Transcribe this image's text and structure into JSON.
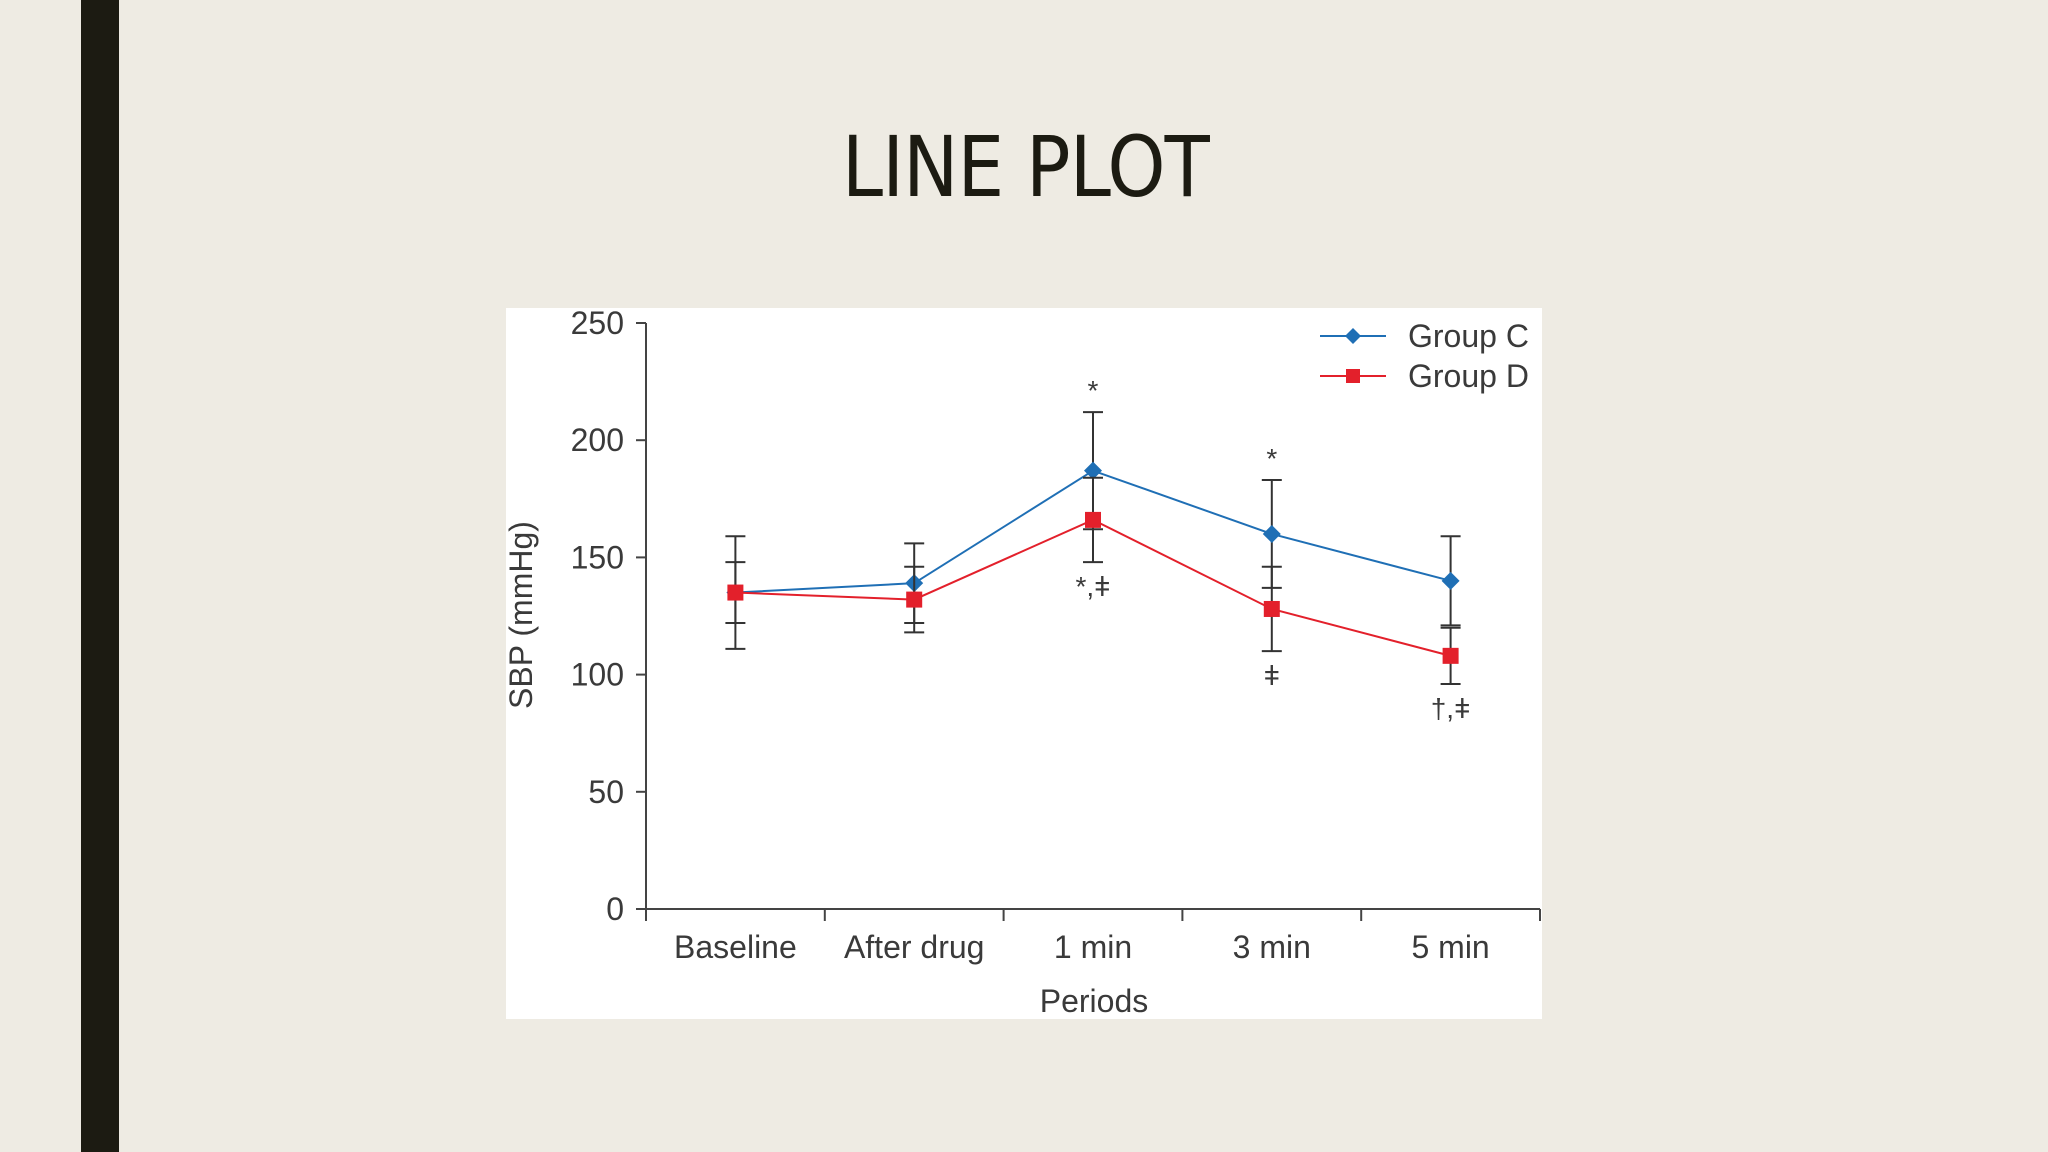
{
  "slide": {
    "title": "LINE PLOT"
  },
  "colors": {
    "background": "#eeebe3",
    "accent_bar": "#1c1b12",
    "title": "#1c1b12",
    "group_c": "#1f6fb5",
    "group_d": "#e3202b",
    "axis": "#444444"
  },
  "chart_data": {
    "type": "line",
    "xlabel": "Periods",
    "ylabel": "SBP (mmHg)",
    "categories": [
      "Baseline",
      "After drug",
      "1 min",
      "3 min",
      "5 min"
    ],
    "ylim": [
      0,
      250
    ],
    "yticks": [
      "0",
      "50",
      "100",
      "150",
      "200",
      "250"
    ],
    "legend_position": "top-right",
    "grid": false,
    "series": [
      {
        "name": "Group C",
        "marker": "diamond",
        "color": "#1f6fb5",
        "values": [
          135,
          139,
          187,
          160,
          140
        ],
        "error": [
          13,
          17,
          25,
          23,
          19
        ],
        "annotations": [
          "",
          "",
          "*",
          "*",
          ""
        ]
      },
      {
        "name": "Group D",
        "marker": "square",
        "color": "#e3202b",
        "values": [
          135,
          132,
          166,
          128,
          108
        ],
        "error": [
          24,
          14,
          18,
          18,
          12
        ],
        "annotations": [
          "",
          "",
          "*,ǂ",
          "ǂ",
          "†,ǂ"
        ]
      }
    ]
  }
}
